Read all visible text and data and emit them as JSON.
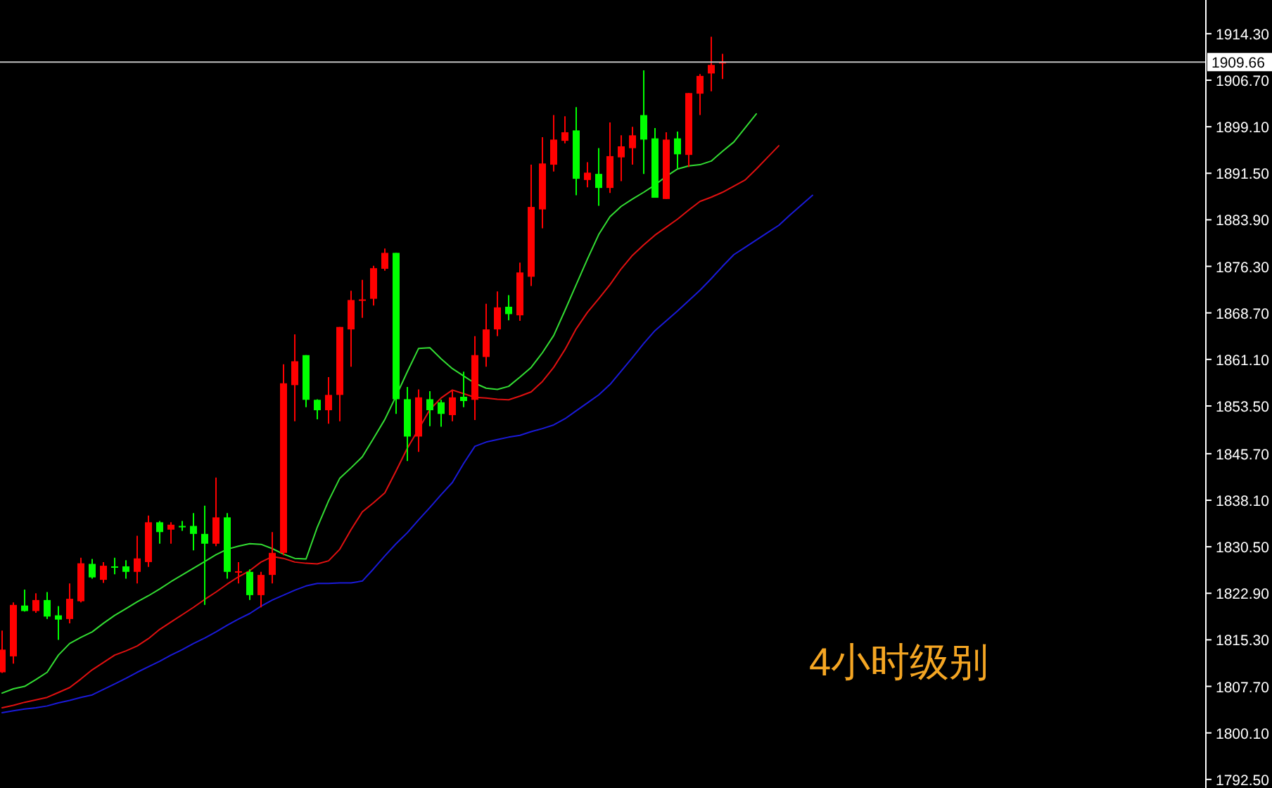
{
  "chart_data": {
    "type": "candlestick",
    "categories": [
      null,
      null,
      null,
      null,
      null,
      null,
      null,
      null,
      null,
      null,
      null,
      null,
      null,
      null,
      null,
      null,
      null,
      null,
      null,
      null,
      null,
      null,
      null,
      null,
      null,
      null,
      null,
      null,
      null,
      null,
      null,
      null,
      null,
      null,
      null,
      null,
      null,
      null,
      null,
      null,
      null,
      null,
      null,
      null,
      null,
      null,
      null,
      null,
      null,
      null,
      null,
      null,
      null,
      null,
      null,
      null,
      null,
      null,
      null,
      null,
      null,
      null,
      null,
      null,
      null,
      null,
      null,
      null,
      null,
      null,
      null,
      null,
      null
    ],
    "ohlc": [
      [
        1810.0,
        1816.8,
        1809.9,
        1813.7
      ],
      [
        1812.6,
        1821.4,
        1811.4,
        1821.0
      ],
      [
        1820.9,
        1823.5,
        1819.9,
        1820.0
      ],
      [
        1820.0,
        1822.9,
        1819.7,
        1821.8
      ],
      [
        1821.8,
        1823.1,
        1818.7,
        1819.1
      ],
      [
        1819.3,
        1820.8,
        1815.3,
        1818.6
      ],
      [
        1818.7,
        1824.5,
        1818.0,
        1822.0
      ],
      [
        1821.6,
        1828.7,
        1821.4,
        1827.8
      ],
      [
        1827.7,
        1828.5,
        1825.3,
        1825.5
      ],
      [
        1825.1,
        1828.0,
        1824.6,
        1827.4
      ],
      [
        1827.3,
        1828.7,
        1826.0,
        1827.3
      ],
      [
        1827.3,
        1828.3,
        1825.3,
        1826.4
      ],
      [
        1826.4,
        1832.3,
        1824.5,
        1828.6
      ],
      [
        1828.0,
        1835.6,
        1827.2,
        1834.5
      ],
      [
        1834.5,
        1834.7,
        1831.0,
        1832.9
      ],
      [
        1833.3,
        1834.5,
        1831.0,
        1834.1
      ],
      [
        1833.9,
        1834.7,
        1833.1,
        1833.9
      ],
      [
        1833.9,
        1836.0,
        1829.9,
        1832.6
      ],
      [
        1832.6,
        1837.2,
        1821.0,
        1831.0
      ],
      [
        1831.0,
        1841.8,
        1830.6,
        1835.3
      ],
      [
        1835.3,
        1836.0,
        1825.3,
        1826.4
      ],
      [
        1826.3,
        1828.0,
        1824.5,
        1826.5
      ],
      [
        1826.4,
        1826.8,
        1821.8,
        1822.6
      ],
      [
        1822.6,
        1826.4,
        1820.6,
        1825.9
      ],
      [
        1825.9,
        1832.9,
        1824.5,
        1829.5
      ],
      [
        1829.5,
        1860.3,
        1829.1,
        1857.2
      ],
      [
        1856.9,
        1865.2,
        1851.0,
        1860.8
      ],
      [
        1861.8,
        1861.8,
        1853.3,
        1854.5
      ],
      [
        1854.5,
        1854.6,
        1851.3,
        1852.8
      ],
      [
        1852.8,
        1858.2,
        1850.6,
        1855.3
      ],
      [
        1855.3,
        1866.4,
        1851.0,
        1866.4
      ],
      [
        1866.0,
        1872.3,
        1859.9,
        1870.8
      ],
      [
        1870.8,
        1874.1,
        1867.9,
        1870.9
      ],
      [
        1871.0,
        1876.4,
        1869.9,
        1876.0
      ],
      [
        1875.9,
        1879.2,
        1875.6,
        1878.5
      ],
      [
        1878.5,
        1878.5,
        1852.2,
        1854.6
      ],
      [
        1854.6,
        1856.6,
        1844.5,
        1848.5
      ],
      [
        1848.5,
        1856.2,
        1846.0,
        1854.9
      ],
      [
        1854.6,
        1855.9,
        1850.2,
        1852.8
      ],
      [
        1854.1,
        1854.5,
        1850.1,
        1852.2
      ],
      [
        1852.0,
        1856.0,
        1851.0,
        1854.9
      ],
      [
        1855.0,
        1859.1,
        1853.3,
        1854.3
      ],
      [
        1854.5,
        1864.9,
        1851.2,
        1861.8
      ],
      [
        1861.5,
        1870.2,
        1859.9,
        1866.0
      ],
      [
        1866.0,
        1872.2,
        1864.9,
        1869.6
      ],
      [
        1869.7,
        1871.6,
        1867.5,
        1868.5
      ],
      [
        1868.3,
        1876.9,
        1867.4,
        1875.3
      ],
      [
        1874.6,
        1892.9,
        1873.1,
        1886.0
      ],
      [
        1885.6,
        1897.4,
        1882.5,
        1893.1
      ],
      [
        1892.9,
        1901.0,
        1891.8,
        1897.0
      ],
      [
        1896.8,
        1900.8,
        1896.4,
        1898.2
      ],
      [
        1898.5,
        1902.3,
        1887.9,
        1890.6
      ],
      [
        1890.4,
        1893.3,
        1889.2,
        1891.6
      ],
      [
        1891.4,
        1895.6,
        1886.2,
        1889.1
      ],
      [
        1889.1,
        1899.8,
        1888.3,
        1894.3
      ],
      [
        1894.1,
        1897.7,
        1890.2,
        1895.9
      ],
      [
        1895.6,
        1899.1,
        1892.9,
        1897.7
      ],
      [
        1901.0,
        1908.3,
        1891.4,
        1897.0
      ],
      [
        1897.2,
        1898.9,
        1887.5,
        1887.5
      ],
      [
        1887.3,
        1898.2,
        1887.3,
        1897.0
      ],
      [
        1897.2,
        1898.3,
        1892.3,
        1894.6
      ],
      [
        1894.5,
        1904.6,
        1892.5,
        1904.6
      ],
      [
        1904.5,
        1907.7,
        1901.0,
        1907.4
      ],
      [
        1907.8,
        1913.8,
        1904.9,
        1909.2
      ],
      [
        1909.5,
        1911.0,
        1906.9,
        1909.66
      ],
      null,
      null,
      null,
      null,
      null,
      null,
      null,
      null
    ],
    "colors": [
      "#ff0000",
      "#ff0000",
      "#00ff00",
      "#ff0000",
      "#00ff00",
      "#00ff00",
      "#ff0000",
      "#ff0000",
      "#00ff00",
      "#ff0000",
      "#00ff00",
      "#00ff00",
      "#ff0000",
      "#ff0000",
      "#00ff00",
      "#ff0000",
      "#00ff00",
      "#00ff00",
      "#00ff00",
      "#ff0000",
      "#00ff00",
      "#ff0000",
      "#00ff00",
      "#ff0000",
      "#ff0000",
      "#ff0000",
      "#ff0000",
      "#00ff00",
      "#00ff00",
      "#ff0000",
      "#ff0000",
      "#ff0000",
      "#ff0000",
      "#ff0000",
      "#ff0000",
      "#00ff00",
      "#00ff00",
      "#ff0000",
      "#00ff00",
      "#00ff00",
      "#ff0000",
      "#00ff00",
      "#ff0000",
      "#ff0000",
      "#ff0000",
      "#00ff00",
      "#ff0000",
      "#ff0000",
      "#ff0000",
      "#ff0000",
      "#ff0000",
      "#00ff00",
      "#ff0000",
      "#00ff00",
      "#ff0000",
      "#ff0000",
      "#ff0000",
      "#00ff00",
      "#00ff00",
      "#ff0000",
      "#00ff00",
      "#ff0000",
      "#ff0000",
      "#ff0000",
      "#ff0000",
      null,
      null,
      null,
      null,
      null,
      null,
      null,
      null
    ],
    "series": [
      {
        "type": "line",
        "color": "#33dd33",
        "values": [
          1806.6,
          1807.3,
          1807.7,
          1808.8,
          1810.0,
          1812.8,
          1814.7,
          1815.7,
          1816.6,
          1818.0,
          1819.3,
          1820.4,
          1821.5,
          1822.5,
          1823.6,
          1824.8,
          1825.9,
          1827.0,
          1828.1,
          1829.2,
          1830.1,
          1830.6,
          1831.0,
          1830.9,
          1830.2,
          1829.3,
          1828.6,
          1828.5,
          1833.7,
          1838.0,
          1841.7,
          1843.4,
          1845.2,
          1848.2,
          1851.3,
          1855.1,
          1859.1,
          1862.9,
          1863.0,
          1861.2,
          1859.6,
          1858.4,
          1857.2,
          1856.4,
          1856.2,
          1856.7,
          1858.2,
          1859.8,
          1862.2,
          1865.0,
          1869.1,
          1873.3,
          1877.5,
          1881.5,
          1884.4,
          1886.1,
          1887.3,
          1888.4,
          1889.6,
          1891.0,
          1892.2,
          1892.7,
          1892.9,
          1893.5,
          1895.1,
          1896.6,
          1898.9,
          1901.2,
          null,
          null,
          null,
          null,
          null
        ]
      },
      {
        "type": "line",
        "color": "#e01010",
        "values": [
          1804.2,
          1804.6,
          1805.1,
          1805.5,
          1805.9,
          1806.7,
          1807.5,
          1808.9,
          1810.4,
          1811.6,
          1812.8,
          1813.5,
          1814.3,
          1815.5,
          1817.0,
          1818.2,
          1819.4,
          1820.6,
          1821.9,
          1823.1,
          1824.4,
          1825.6,
          1826.6,
          1828.0,
          1828.9,
          1828.6,
          1828.0,
          1827.8,
          1827.7,
          1828.2,
          1830.1,
          1833.3,
          1836.2,
          1837.7,
          1839.3,
          1842.9,
          1846.6,
          1849.7,
          1852.9,
          1854.8,
          1856.1,
          1855.5,
          1854.9,
          1854.8,
          1854.6,
          1854.5,
          1855.1,
          1855.8,
          1857.5,
          1859.8,
          1862.7,
          1866.1,
          1868.8,
          1871.0,
          1873.3,
          1875.9,
          1878.1,
          1879.8,
          1881.4,
          1882.7,
          1884.0,
          1885.5,
          1886.9,
          1887.6,
          1888.4,
          1889.4,
          1890.4,
          1892.2,
          1894.1,
          1896.0,
          null,
          null,
          null
        ]
      },
      {
        "type": "line",
        "color": "#1a1ad8",
        "values": [
          1803.4,
          1803.7,
          1804.0,
          1804.2,
          1804.5,
          1805.0,
          1805.4,
          1805.9,
          1806.3,
          1807.2,
          1808.1,
          1809.0,
          1810.0,
          1810.9,
          1811.8,
          1812.8,
          1813.7,
          1814.7,
          1815.6,
          1816.6,
          1817.7,
          1818.7,
          1819.6,
          1820.8,
          1821.8,
          1822.6,
          1823.4,
          1824.1,
          1824.5,
          1824.5,
          1824.6,
          1824.6,
          1824.9,
          1826.9,
          1829.0,
          1831.0,
          1832.8,
          1834.9,
          1836.9,
          1839.0,
          1841.0,
          1844.1,
          1846.9,
          1847.6,
          1848.0,
          1848.4,
          1848.7,
          1849.3,
          1849.8,
          1850.4,
          1851.4,
          1852.7,
          1854.0,
          1855.3,
          1857.0,
          1859.2,
          1861.4,
          1863.7,
          1865.8,
          1867.4,
          1869.0,
          1870.7,
          1872.4,
          1874.3,
          1876.3,
          1878.2,
          1879.4,
          1880.6,
          1881.8,
          1883.0,
          1884.7,
          1886.3,
          1887.9
        ]
      }
    ],
    "ylim": [
      1791.1,
      1919.8
    ],
    "yticks": [
      {
        "value": 1914.3,
        "label": "1914.30"
      },
      {
        "value": 1906.7,
        "label": "1906.70"
      },
      {
        "value": 1899.1,
        "label": "1899.10"
      },
      {
        "value": 1891.5,
        "label": "1891.50"
      },
      {
        "value": 1883.9,
        "label": "1883.90"
      },
      {
        "value": 1876.3,
        "label": "1876.30"
      },
      {
        "value": 1868.7,
        "label": "1868.70"
      },
      {
        "value": 1861.1,
        "label": "1861.10"
      },
      {
        "value": 1853.5,
        "label": "1853.50"
      },
      {
        "value": 1845.7,
        "label": "1845.70"
      },
      {
        "value": 1838.1,
        "label": "1838.10"
      },
      {
        "value": 1830.5,
        "label": "1830.50"
      },
      {
        "value": 1822.9,
        "label": "1822.90"
      },
      {
        "value": 1815.3,
        "label": "1815.30"
      },
      {
        "value": 1807.7,
        "label": "1807.70"
      },
      {
        "value": 1800.1,
        "label": "1800.10"
      },
      {
        "value": 1792.5,
        "label": "1792.50"
      }
    ],
    "ref_lines": [
      {
        "axis": "y",
        "value": 1909.66,
        "label": "1909.66",
        "color": "#c0c0c0"
      }
    ],
    "annotations": [
      "4小时级别"
    ],
    "tick_labels": "y",
    "grid": false,
    "marker": "none",
    "line_style": "solid"
  }
}
